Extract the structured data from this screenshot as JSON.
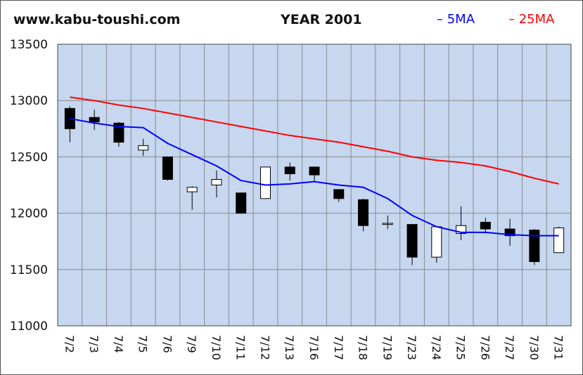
{
  "header": {
    "site": "www.kabu-toushi.com",
    "title": "YEAR 2001"
  },
  "chart_data": {
    "type": "candlestick",
    "categories": [
      "7/2",
      "7/3",
      "7/4",
      "7/5",
      "7/6",
      "7/9",
      "7/10",
      "7/11",
      "7/12",
      "7/13",
      "7/16",
      "7/17",
      "7/18",
      "7/19",
      "7/23",
      "7/24",
      "7/25",
      "7/26",
      "7/27",
      "7/30",
      "7/31"
    ],
    "ylim": [
      11000,
      13500
    ],
    "yticks": [
      11000,
      11500,
      12000,
      12500,
      13000,
      13500
    ],
    "grid": true,
    "legend_position": "top-right",
    "candles": [
      {
        "open": 12930,
        "high": 12950,
        "low": 12630,
        "close": 12750
      },
      {
        "open": 12850,
        "high": 12920,
        "low": 12740,
        "close": 12810
      },
      {
        "open": 12800,
        "high": 12810,
        "low": 12590,
        "close": 12630
      },
      {
        "open": 12560,
        "high": 12660,
        "low": 12510,
        "close": 12600
      },
      {
        "open": 12500,
        "high": 12500,
        "low": 12290,
        "close": 12300
      },
      {
        "open": 12190,
        "high": 12240,
        "low": 12030,
        "close": 12230
      },
      {
        "open": 12250,
        "high": 12380,
        "low": 12140,
        "close": 12300
      },
      {
        "open": 12180,
        "high": 12180,
        "low": 12000,
        "close": 12000
      },
      {
        "open": 12130,
        "high": 12410,
        "low": 12130,
        "close": 12410
      },
      {
        "open": 12410,
        "high": 12450,
        "low": 12290,
        "close": 12350
      },
      {
        "open": 12410,
        "high": 12410,
        "low": 12280,
        "close": 12340
      },
      {
        "open": 12210,
        "high": 12210,
        "low": 12100,
        "close": 12130
      },
      {
        "open": 12120,
        "high": 12130,
        "low": 11840,
        "close": 11890
      },
      {
        "open": 11900,
        "high": 11980,
        "low": 11860,
        "close": 11910
      },
      {
        "open": 11900,
        "high": 11900,
        "low": 11540,
        "close": 11610
      },
      {
        "open": 11610,
        "high": 11880,
        "low": 11560,
        "close": 11880
      },
      {
        "open": 11820,
        "high": 12060,
        "low": 11760,
        "close": 11890
      },
      {
        "open": 11920,
        "high": 11960,
        "low": 11820,
        "close": 11860
      },
      {
        "open": 11860,
        "high": 11950,
        "low": 11710,
        "close": 11800
      },
      {
        "open": 11850,
        "high": 11860,
        "low": 11540,
        "close": 11570
      },
      {
        "open": 11650,
        "high": 11880,
        "low": 11650,
        "close": 11870
      }
    ],
    "series": [
      {
        "name": "5MA",
        "color": "#0000ff",
        "values": [
          12840,
          12800,
          12770,
          12760,
          12620,
          12520,
          12420,
          12290,
          12250,
          12260,
          12280,
          12250,
          12230,
          12130,
          11980,
          11880,
          11830,
          11830,
          11810,
          11800,
          11800
        ]
      },
      {
        "name": "25MA",
        "color": "#ff0000",
        "values": [
          13030,
          13000,
          12960,
          12930,
          12890,
          12850,
          12810,
          12770,
          12730,
          12690,
          12660,
          12630,
          12590,
          12550,
          12500,
          12470,
          12450,
          12420,
          12370,
          12310,
          12260
        ]
      }
    ],
    "colors": {
      "plot_bg": "#c6d7ef",
      "grid": "#8a8a8a",
      "up": "#ffffff",
      "down": "#000000"
    }
  }
}
